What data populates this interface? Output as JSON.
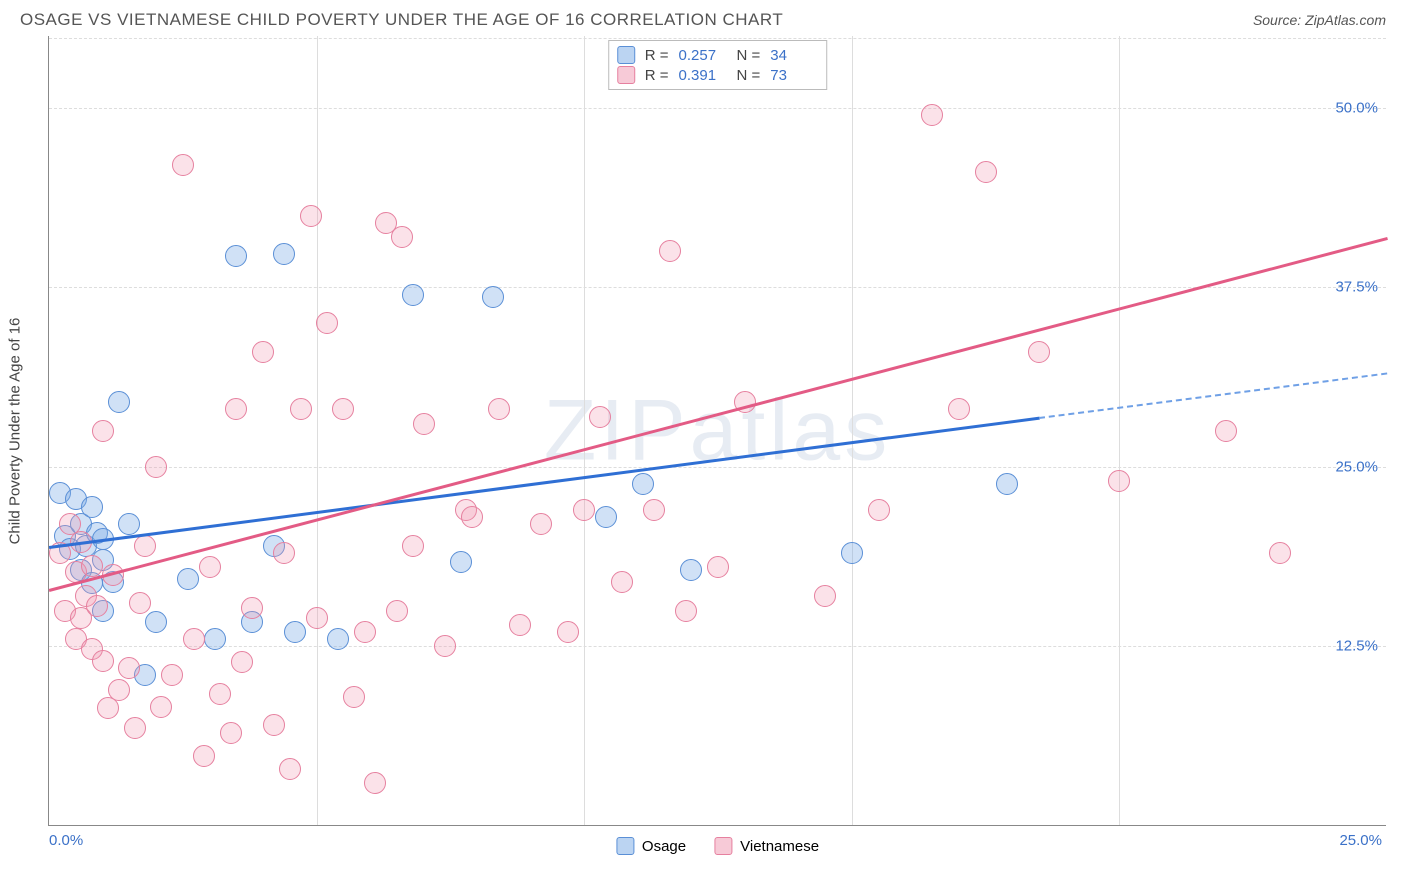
{
  "title": "OSAGE VS VIETNAMESE CHILD POVERTY UNDER THE AGE OF 16 CORRELATION CHART",
  "source": "Source: ZipAtlas.com",
  "watermark": "ZIPatlas",
  "chart": {
    "type": "scatter",
    "ylabel": "Child Poverty Under the Age of 16",
    "xlim": [
      0,
      25
    ],
    "ylim": [
      0,
      55
    ],
    "xtick_labels": [
      "0.0%",
      "25.0%"
    ],
    "ytick_labels": [
      "12.5%",
      "25.0%",
      "37.5%",
      "50.0%"
    ],
    "ytick_values": [
      12.5,
      25.0,
      37.5,
      50.0
    ],
    "grid_color": "#dddddd",
    "axis_color": "#888888",
    "tick_font_color": "#3b71c8",
    "background_color": "#ffffff",
    "point_radius": 11,
    "series": [
      {
        "name": "Osage",
        "key": "osage",
        "color_fill": "rgba(120,170,230,0.35)",
        "color_stroke": "#5a8fd6",
        "trend_color": "#2f6fd4",
        "trend_dash_color": "#6fa0e6",
        "r": "0.257",
        "n": "34",
        "trend": {
          "x1": 0,
          "y1": 19.5,
          "x2": 18.5,
          "y2": 28.5,
          "dash_x2": 25,
          "dash_y2": 31.6
        },
        "points": [
          [
            0.2,
            23.2
          ],
          [
            0.3,
            20.2
          ],
          [
            0.4,
            19.3
          ],
          [
            0.5,
            22.8
          ],
          [
            0.6,
            17.8
          ],
          [
            0.6,
            21.0
          ],
          [
            0.7,
            19.5
          ],
          [
            0.8,
            16.9
          ],
          [
            0.8,
            22.2
          ],
          [
            0.9,
            20.4
          ],
          [
            1.0,
            15.0
          ],
          [
            1.0,
            18.5
          ],
          [
            1.0,
            20.0
          ],
          [
            1.2,
            17.0
          ],
          [
            1.3,
            29.5
          ],
          [
            1.5,
            21.0
          ],
          [
            1.8,
            10.5
          ],
          [
            2.0,
            14.2
          ],
          [
            2.6,
            17.2
          ],
          [
            3.1,
            13.0
          ],
          [
            3.5,
            39.7
          ],
          [
            3.8,
            14.2
          ],
          [
            4.2,
            19.5
          ],
          [
            4.4,
            39.8
          ],
          [
            4.6,
            13.5
          ],
          [
            5.4,
            13.0
          ],
          [
            6.8,
            37.0
          ],
          [
            7.7,
            18.4
          ],
          [
            8.3,
            36.8
          ],
          [
            10.4,
            21.5
          ],
          [
            11.1,
            23.8
          ],
          [
            12.0,
            17.8
          ],
          [
            15.0,
            19.0
          ],
          [
            17.9,
            23.8
          ]
        ]
      },
      {
        "name": "Vietnamese",
        "key": "vietnamese",
        "color_fill": "rgba(240,150,175,0.28)",
        "color_stroke": "#e6809f",
        "trend_color": "#e35b85",
        "trend_dash_color": "#f0a0b8",
        "r": "0.391",
        "n": "73",
        "trend": {
          "x1": 0,
          "y1": 16.5,
          "x2": 25,
          "y2": 41.0
        },
        "points": [
          [
            0.2,
            19.0
          ],
          [
            0.3,
            15.0
          ],
          [
            0.4,
            21.0
          ],
          [
            0.5,
            13.0
          ],
          [
            0.5,
            17.7
          ],
          [
            0.6,
            19.8
          ],
          [
            0.6,
            14.5
          ],
          [
            0.7,
            16.0
          ],
          [
            0.8,
            12.3
          ],
          [
            0.8,
            18.1
          ],
          [
            0.9,
            15.3
          ],
          [
            1.0,
            27.5
          ],
          [
            1.0,
            11.5
          ],
          [
            1.1,
            8.2
          ],
          [
            1.2,
            17.5
          ],
          [
            1.3,
            9.5
          ],
          [
            1.5,
            11.0
          ],
          [
            1.6,
            6.8
          ],
          [
            1.7,
            15.5
          ],
          [
            1.8,
            19.5
          ],
          [
            2.0,
            25.0
          ],
          [
            2.1,
            8.3
          ],
          [
            2.3,
            10.5
          ],
          [
            2.5,
            46.0
          ],
          [
            2.7,
            13.0
          ],
          [
            2.9,
            4.9
          ],
          [
            3.0,
            18.0
          ],
          [
            3.2,
            9.2
          ],
          [
            3.4,
            6.5
          ],
          [
            3.5,
            29.0
          ],
          [
            3.6,
            11.4
          ],
          [
            3.8,
            15.2
          ],
          [
            4.0,
            33.0
          ],
          [
            4.2,
            7.0
          ],
          [
            4.4,
            19.0
          ],
          [
            4.5,
            4.0
          ],
          [
            4.7,
            29.0
          ],
          [
            4.9,
            42.5
          ],
          [
            5.0,
            14.5
          ],
          [
            5.2,
            35.0
          ],
          [
            5.5,
            29.0
          ],
          [
            5.7,
            9.0
          ],
          [
            5.9,
            13.5
          ],
          [
            6.1,
            3.0
          ],
          [
            6.3,
            42.0
          ],
          [
            6.5,
            15.0
          ],
          [
            6.6,
            41.0
          ],
          [
            6.8,
            19.5
          ],
          [
            7.0,
            28.0
          ],
          [
            7.4,
            12.5
          ],
          [
            7.8,
            22.0
          ],
          [
            7.9,
            21.5
          ],
          [
            8.4,
            29.0
          ],
          [
            8.8,
            14.0
          ],
          [
            9.2,
            21.0
          ],
          [
            9.7,
            13.5
          ],
          [
            10.0,
            22.0
          ],
          [
            10.3,
            28.5
          ],
          [
            10.7,
            17.0
          ],
          [
            11.3,
            22.0
          ],
          [
            11.6,
            40.0
          ],
          [
            11.9,
            15.0
          ],
          [
            12.5,
            18.0
          ],
          [
            13.0,
            29.5
          ],
          [
            14.5,
            16.0
          ],
          [
            15.5,
            22.0
          ],
          [
            16.5,
            49.5
          ],
          [
            17.0,
            29.0
          ],
          [
            17.5,
            45.5
          ],
          [
            18.5,
            33.0
          ],
          [
            20.0,
            24.0
          ],
          [
            22.0,
            27.5
          ],
          [
            23.0,
            19.0
          ]
        ]
      }
    ],
    "legend_bottom": [
      "Osage",
      "Vietnamese"
    ]
  }
}
